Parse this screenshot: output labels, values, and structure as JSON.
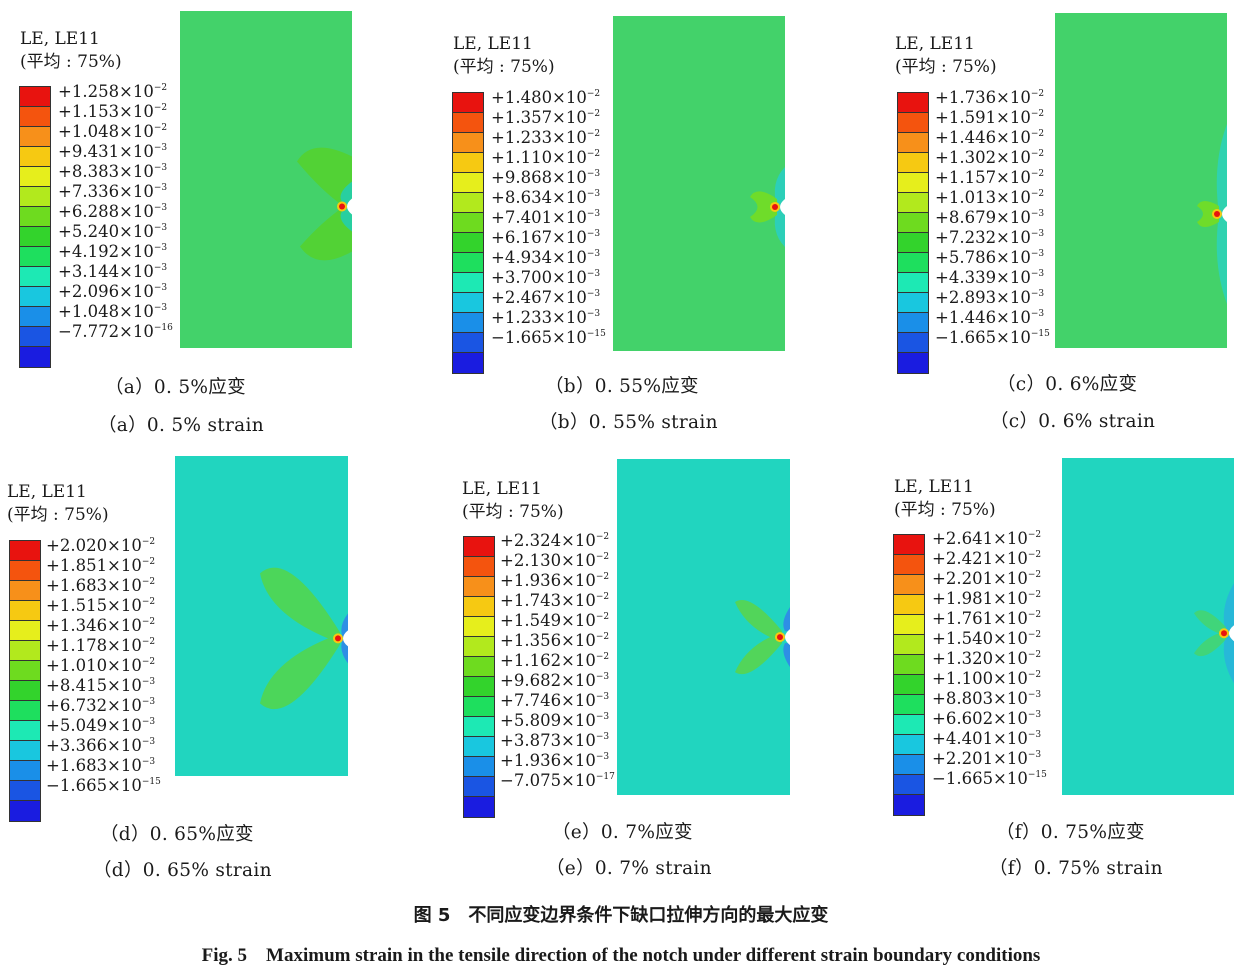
{
  "colors": [
    "#e8130f",
    "#f4540e",
    "#f7901a",
    "#f6c912",
    "#e6ee1c",
    "#b2e91d",
    "#6edb1f",
    "#33d32c",
    "#1edf5e",
    "#1de9b4",
    "#19c7df",
    "#1a8fe8",
    "#1a55e3",
    "#1a1ce0"
  ],
  "field_colors": {
    "green": "#43d26a",
    "cyan": "#21d5bf",
    "blue_edge": "#2e8fe5"
  },
  "panels": [
    {
      "legend_title": "LE, LE11",
      "legend_avg": "(平均 : 75%)",
      "labels": [
        {
          "m": "+1.258×10",
          "e": "−2"
        },
        {
          "m": "+1.153×10",
          "e": "−2"
        },
        {
          "m": "+1.048×10",
          "e": "−2"
        },
        {
          "m": "+9.431×10",
          "e": "−3"
        },
        {
          "m": "+8.383×10",
          "e": "−3"
        },
        {
          "m": "+7.336×10",
          "e": "−3"
        },
        {
          "m": "+6.288×10",
          "e": "−3"
        },
        {
          "m": "+5.240×10",
          "e": "−3"
        },
        {
          "m": "+4.192×10",
          "e": "−3"
        },
        {
          "m": "+3.144×10",
          "e": "−3"
        },
        {
          "m": "+2.096×10",
          "e": "−3"
        },
        {
          "m": "+1.048×10",
          "e": "−3"
        },
        {
          "m": "−7.772×10",
          "e": "−16"
        }
      ],
      "caption_cn": "（a）0. 5%应变",
      "caption_en": "（a）0. 5% strain"
    },
    {
      "legend_title": "LE, LE11",
      "legend_avg": "(平均 : 75%)",
      "labels": [
        {
          "m": "+1.480×10",
          "e": "−2"
        },
        {
          "m": "+1.357×10",
          "e": "−2"
        },
        {
          "m": "+1.233×10",
          "e": "−2"
        },
        {
          "m": "+1.110×10",
          "e": "−2"
        },
        {
          "m": "+9.868×10",
          "e": "−3"
        },
        {
          "m": "+8.634×10",
          "e": "−3"
        },
        {
          "m": "+7.401×10",
          "e": "−3"
        },
        {
          "m": "+6.167×10",
          "e": "−3"
        },
        {
          "m": "+4.934×10",
          "e": "−3"
        },
        {
          "m": "+3.700×10",
          "e": "−3"
        },
        {
          "m": "+2.467×10",
          "e": "−3"
        },
        {
          "m": "+1.233×10",
          "e": "−3"
        },
        {
          "m": "−1.665×10",
          "e": "−15"
        }
      ],
      "caption_cn": "（b）0. 55%应变",
      "caption_en": "（b）0. 55% strain"
    },
    {
      "legend_title": "LE, LE11",
      "legend_avg": "(平均 : 75%)",
      "labels": [
        {
          "m": "+1.736×10",
          "e": "−2"
        },
        {
          "m": "+1.591×10",
          "e": "−2"
        },
        {
          "m": "+1.446×10",
          "e": "−2"
        },
        {
          "m": "+1.302×10",
          "e": "−2"
        },
        {
          "m": "+1.157×10",
          "e": "−2"
        },
        {
          "m": "+1.013×10",
          "e": "−2"
        },
        {
          "m": "+8.679×10",
          "e": "−3"
        },
        {
          "m": "+7.232×10",
          "e": "−3"
        },
        {
          "m": "+5.786×10",
          "e": "−3"
        },
        {
          "m": "+4.339×10",
          "e": "−3"
        },
        {
          "m": "+2.893×10",
          "e": "−3"
        },
        {
          "m": "+1.446×10",
          "e": "−3"
        },
        {
          "m": "−1.665×10",
          "e": "−15"
        }
      ],
      "caption_cn": "（c）0. 6%应变",
      "caption_en": "（c）0. 6% strain"
    },
    {
      "legend_title": "LE, LE11",
      "legend_avg": "(平均 : 75%)",
      "labels": [
        {
          "m": "+2.020×10",
          "e": "−2"
        },
        {
          "m": "+1.851×10",
          "e": "−2"
        },
        {
          "m": "+1.683×10",
          "e": "−2"
        },
        {
          "m": "+1.515×10",
          "e": "−2"
        },
        {
          "m": "+1.346×10",
          "e": "−2"
        },
        {
          "m": "+1.178×10",
          "e": "−2"
        },
        {
          "m": "+1.010×10",
          "e": "−2"
        },
        {
          "m": "+8.415×10",
          "e": "−3"
        },
        {
          "m": "+6.732×10",
          "e": "−3"
        },
        {
          "m": "+5.049×10",
          "e": "−3"
        },
        {
          "m": "+3.366×10",
          "e": "−3"
        },
        {
          "m": "+1.683×10",
          "e": "−3"
        },
        {
          "m": "−1.665×10",
          "e": "−15"
        }
      ],
      "caption_cn": "（d）0. 65%应变",
      "caption_en": "（d）0. 65% strain"
    },
    {
      "legend_title": "LE, LE11",
      "legend_avg": "(平均 : 75%)",
      "labels": [
        {
          "m": "+2.324×10",
          "e": "−2"
        },
        {
          "m": "+2.130×10",
          "e": "−2"
        },
        {
          "m": "+1.936×10",
          "e": "−2"
        },
        {
          "m": "+1.743×10",
          "e": "−2"
        },
        {
          "m": "+1.549×10",
          "e": "−2"
        },
        {
          "m": "+1.356×10",
          "e": "−2"
        },
        {
          "m": "+1.162×10",
          "e": "−2"
        },
        {
          "m": "+9.682×10",
          "e": "−3"
        },
        {
          "m": "+7.746×10",
          "e": "−3"
        },
        {
          "m": "+5.809×10",
          "e": "−3"
        },
        {
          "m": "+3.873×10",
          "e": "−3"
        },
        {
          "m": "+1.936×10",
          "e": "−3"
        },
        {
          "m": "−7.075×10",
          "e": "−17"
        }
      ],
      "caption_cn": "（e）0. 7%应变",
      "caption_en": "（e）0. 7% strain"
    },
    {
      "legend_title": "LE, LE11",
      "legend_avg": "(平均 : 75%)",
      "labels": [
        {
          "m": "+2.641×10",
          "e": "−2"
        },
        {
          "m": "+2.421×10",
          "e": "−2"
        },
        {
          "m": "+2.201×10",
          "e": "−2"
        },
        {
          "m": "+1.981×10",
          "e": "−2"
        },
        {
          "m": "+1.761×10",
          "e": "−2"
        },
        {
          "m": "+1.540×10",
          "e": "−2"
        },
        {
          "m": "+1.320×10",
          "e": "−2"
        },
        {
          "m": "+1.100×10",
          "e": "−2"
        },
        {
          "m": "+8.803×10",
          "e": "−3"
        },
        {
          "m": "+6.602×10",
          "e": "−3"
        },
        {
          "m": "+4.401×10",
          "e": "−3"
        },
        {
          "m": "+2.201×10",
          "e": "−3"
        },
        {
          "m": "−1.665×10",
          "e": "−15"
        }
      ],
      "caption_cn": "（f）0. 75%应变",
      "caption_en": "（f）0. 75% strain"
    }
  ],
  "figure_caption_cn": "图 5　不同应变边界条件下缺口拉伸方向的最大应变",
  "figure_caption_en": "Fig. 5　Maximum strain in the tensile direction of the notch under different strain boundary conditions"
}
